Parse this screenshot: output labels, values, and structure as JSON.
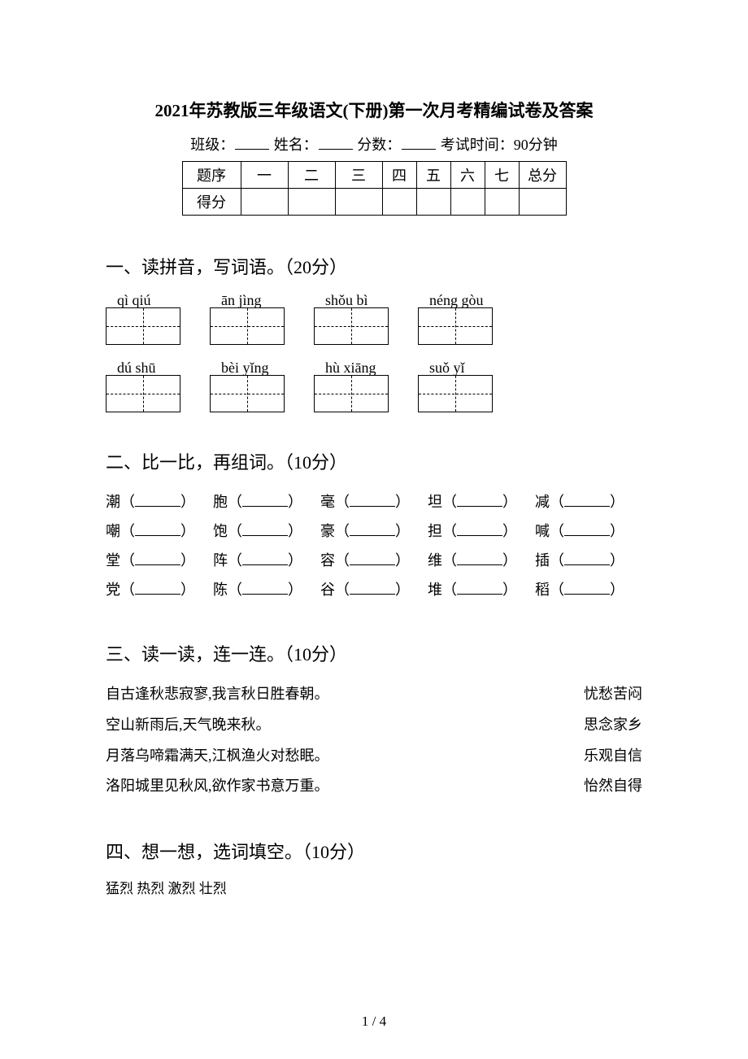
{
  "title": "2021年苏教版三年级语文(下册)第一次月考精编试卷及答案",
  "info": {
    "class_label": "班级：",
    "name_label": "姓名：",
    "score_label": "分数：",
    "time_label": "考试时间：90分钟"
  },
  "score_table": {
    "row_label": "题序",
    "score_row_label": "得分",
    "cols": [
      "一",
      "二",
      "三",
      "四",
      "五",
      "六",
      "七",
      "总分"
    ]
  },
  "sections": {
    "s1": {
      "heading": "一、读拼音，写词语。（20分）",
      "row1_pinyin": [
        "qì qiú",
        "ān jìng",
        "shǒu bì",
        "néng gòu"
      ],
      "row2_pinyin": [
        "dú shū",
        "bèi yǐng",
        "hù xiāng",
        "suǒ yǐ"
      ]
    },
    "s2": {
      "heading": "二、比一比，再组词。（10分）",
      "rows": [
        [
          "潮",
          "胞",
          "毫",
          "坦",
          "减"
        ],
        [
          "嘲",
          "饱",
          "豪",
          "担",
          "喊"
        ],
        [
          "堂",
          "阵",
          "容",
          "维",
          "插"
        ],
        [
          "党",
          "陈",
          "谷",
          "堆",
          "稻"
        ]
      ]
    },
    "s3": {
      "heading": "三、读一读，连一连。（10分）",
      "left": [
        "自古逢秋悲寂寥,我言秋日胜春朝。",
        "空山新雨后,天气晚来秋。",
        "月落乌啼霜满天,江枫渔火对愁眠。",
        "洛阳城里见秋风,欲作家书意万重。"
      ],
      "right": [
        "忧愁苦闷",
        "思念家乡",
        "乐观自信",
        "怡然自得"
      ]
    },
    "s4": {
      "heading": "四、想一想，选词填空。（10分）",
      "options": "猛烈 热烈 激烈 壮烈"
    }
  },
  "pagenum": "1 / 4"
}
